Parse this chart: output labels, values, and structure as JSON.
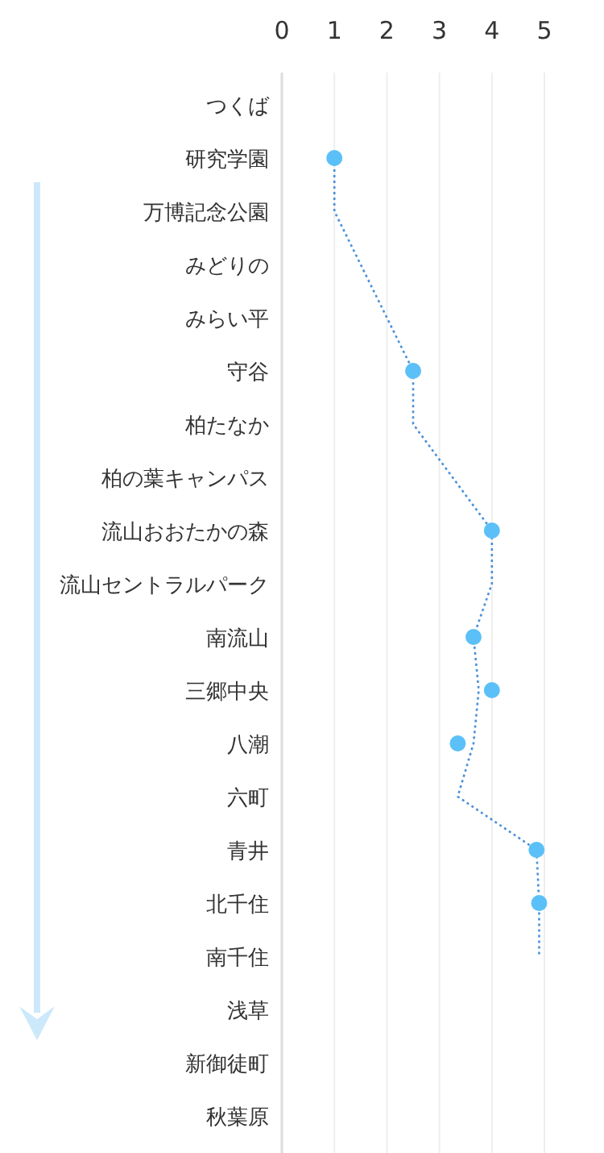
{
  "chart_data": {
    "type": "scatter",
    "orientation": "horizontal",
    "categories": [
      "つくば",
      "研究学園",
      "万博記念公園",
      "みどりの",
      "みらい平",
      "守谷",
      "柏たなか",
      "柏の葉キャンパス",
      "流山おおたかの森",
      "流山セントラルパーク",
      "南流山",
      "三郷中央",
      "八潮",
      "六町",
      "青井",
      "北千住",
      "南千住",
      "浅草",
      "新御徒町",
      "秋葉原"
    ],
    "xlim": [
      0,
      5
    ],
    "xticks": [
      0,
      1,
      2,
      3,
      4,
      5
    ],
    "grid": "x",
    "series": [
      {
        "type": "line",
        "color": "#4a90d9",
        "line_style": "dotted",
        "marker": "none",
        "values": [
          null,
          1.0,
          1.0,
          1.5,
          2.0,
          2.5,
          2.5,
          3.25,
          4.0,
          4.0,
          3.65,
          3.75,
          3.65,
          3.35,
          4.85,
          4.9,
          4.9,
          null,
          null,
          null
        ]
      },
      {
        "color": "#5bc0f8",
        "marker": "circle",
        "values": [
          null,
          1.0,
          null,
          null,
          null,
          2.5,
          null,
          null,
          4.0,
          null,
          3.65,
          4.0,
          3.35,
          null,
          4.85,
          4.9,
          null,
          null,
          null,
          null
        ]
      }
    ]
  }
}
